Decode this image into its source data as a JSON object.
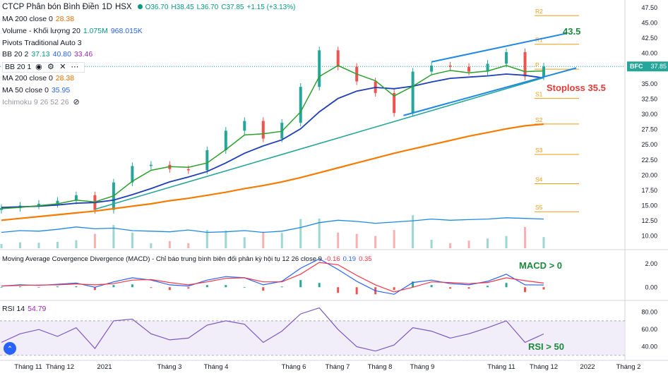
{
  "header": {
    "symbol": "CTCP Phân bón Bình Điền",
    "interval": "1D",
    "exchange": "HSX",
    "ohlc": [
      "O36.70",
      "H38.45",
      "L36.70",
      "C37.85",
      "+1.15 (+3.13%)"
    ]
  },
  "legend_rows": [
    {
      "name": "MA 200 close 0",
      "values": [
        "28.38"
      ],
      "colors": [
        "#ef6c00"
      ]
    },
    {
      "name": "Volume - Khối lượng 20",
      "values": [
        "1.075M",
        "968.015K"
      ],
      "colors": [
        "#089981",
        "#2962ff"
      ]
    },
    {
      "name": "Pivots Traditional Auto 3",
      "values": [],
      "colors": []
    },
    {
      "name": "BB 20 2",
      "values": [
        "37.13",
        "40.80",
        "33.46"
      ],
      "colors": [
        "#089981",
        "#2962ff",
        "#9c27b0"
      ]
    },
    {
      "name": "BB 20 1",
      "values": [],
      "colors": [],
      "toolbar": true
    },
    {
      "name": "MA 200 close 0",
      "values": [
        "28.38"
      ],
      "colors": [
        "#ef6c00"
      ]
    },
    {
      "name": "MA 50 close 0",
      "values": [
        "35.95"
      ],
      "colors": [
        "#2962ff"
      ]
    },
    {
      "name": "Ichimoku 9 26 52 26",
      "values": [],
      "colors": [],
      "muted": true
    }
  ],
  "macd_legend": {
    "name": "Moving Average Covergence Divergence (MACD) - Chỉ báo trung bình biên đối phân kỳ hội tụ 12 26 close 9",
    "values": [
      "-0.16",
      "0.19",
      "0.35"
    ],
    "colors": [
      "#f23645",
      "#2962ff",
      "#f23645"
    ]
  },
  "rsi_legend": {
    "name": "RSI 14",
    "value": "54.79"
  },
  "annotations": {
    "target": "43.5",
    "stoploss": "Stoploss 35.5",
    "macd_note": "MACD > 0",
    "rsi_note": "RSI > 50"
  },
  "price_badge": {
    "ticker": "BFC",
    "price": "37.85"
  },
  "colors": {
    "up": "#26a69a",
    "down": "#ef5350",
    "ma200": "#f57c00",
    "ma50": "#1e3fb8",
    "ma20": "#2ca02c",
    "trend": "#1e88e5",
    "pivot": "#f29c0e",
    "rsi": "#7e57c2"
  },
  "chart_data": {
    "type": "line",
    "price_axis": {
      "ticks": [
        10.0,
        12.5,
        15.0,
        17.5,
        20.0,
        22.5,
        25.0,
        27.5,
        30.0,
        32.5,
        35.0,
        37.5,
        40.0,
        42.5,
        45.0,
        47.5
      ],
      "labels": [
        "10.00",
        "12.50",
        "15.00",
        "17.50",
        "20.00",
        "22.50",
        "25.00",
        "27.50",
        "30.00",
        "32.50",
        "35.00",
        "37.50",
        "40.00",
        "42.50",
        "45.00",
        "47.50"
      ]
    },
    "macd_axis": {
      "ticks": [
        0,
        2
      ],
      "labels": [
        "0.00",
        "2.00"
      ]
    },
    "rsi_axis": {
      "ticks": [
        40,
        60,
        80
      ],
      "labels": [
        "40.00",
        "60.00",
        "80.00"
      ],
      "band": [
        30,
        70
      ]
    },
    "time_axis": [
      "Tháng 11",
      "Tháng 12",
      "2021",
      "Tháng 3",
      "Tháng 4",
      "Tháng 6",
      "Tháng 7",
      "Tháng 8",
      "Tháng 9",
      "Tháng 11",
      "Tháng 12",
      "2022",
      "Tháng 2"
    ],
    "pivots": [
      {
        "label": "R2",
        "value": 46.2
      },
      {
        "label": "R1",
        "value": 41.5
      },
      {
        "label": "P",
        "value": 37.4
      },
      {
        "label": "S1",
        "value": 32.6
      },
      {
        "label": "S2",
        "value": 28.4
      },
      {
        "label": "S3",
        "value": 23.4
      },
      {
        "label": "S4",
        "value": 18.6
      },
      {
        "label": "S5",
        "value": 14.0
      }
    ],
    "series": [
      {
        "name": "Close",
        "x": [
          0,
          10,
          20,
          30,
          40,
          50,
          60,
          70,
          80,
          90,
          100,
          110,
          120,
          130,
          140,
          150,
          160,
          170,
          180,
          190,
          200,
          210,
          220,
          230,
          240,
          250,
          260,
          270,
          280,
          290
        ],
        "values": [
          14.6,
          15.0,
          15.3,
          15.8,
          16.7,
          14.3,
          18.8,
          21.5,
          21.7,
          21.0,
          20.8,
          24.1,
          27.3,
          28.9,
          26.0,
          28.6,
          34.5,
          40.5,
          37.8,
          35.4,
          33.5,
          30.2,
          37.0,
          38.0,
          37.8,
          37.0,
          38.3,
          40.2,
          36.2,
          37.85
        ]
      },
      {
        "name": "MA 20",
        "x": [
          0,
          10,
          20,
          30,
          40,
          50,
          60,
          70,
          80,
          90,
          100,
          110,
          120,
          130,
          140,
          150,
          160,
          170,
          180,
          190,
          200,
          210,
          220,
          230,
          240,
          250,
          260,
          270,
          280,
          290
        ],
        "values": [
          14.5,
          14.7,
          15.0,
          15.3,
          15.9,
          15.6,
          16.6,
          19.0,
          20.8,
          21.4,
          21.3,
          22.0,
          24.2,
          26.6,
          26.8,
          27.2,
          30.4,
          36.2,
          38.0,
          36.6,
          35.5,
          33.0,
          34.6,
          36.5,
          37.2,
          36.8,
          37.1,
          38.0,
          37.0,
          37.13
        ]
      },
      {
        "name": "MA 50",
        "x": [
          0,
          10,
          20,
          30,
          40,
          50,
          60,
          70,
          80,
          90,
          100,
          110,
          120,
          130,
          140,
          150,
          160,
          170,
          180,
          190,
          200,
          210,
          220,
          230,
          240,
          250,
          260,
          270,
          280,
          290
        ],
        "values": [
          14.7,
          14.8,
          14.9,
          15.1,
          15.4,
          15.5,
          15.9,
          16.8,
          17.8,
          18.9,
          19.7,
          20.6,
          22.0,
          23.6,
          24.8,
          25.8,
          27.6,
          30.4,
          32.6,
          33.8,
          34.4,
          34.2,
          34.6,
          35.3,
          35.9,
          36.1,
          36.3,
          36.6,
          36.4,
          35.95
        ]
      },
      {
        "name": "MA 200",
        "x": [
          0,
          10,
          20,
          30,
          40,
          50,
          60,
          70,
          80,
          90,
          100,
          110,
          120,
          130,
          140,
          150,
          160,
          170,
          180,
          190,
          200,
          210,
          220,
          230,
          240,
          250,
          260,
          270,
          280,
          290
        ],
        "values": [
          12.6,
          12.9,
          13.2,
          13.5,
          13.8,
          14.1,
          14.5,
          14.9,
          15.3,
          15.8,
          16.2,
          16.7,
          17.2,
          17.8,
          18.3,
          18.9,
          19.6,
          20.4,
          21.2,
          22.0,
          22.8,
          23.6,
          24.3,
          25.0,
          25.7,
          26.4,
          27.0,
          27.6,
          28.1,
          28.38
        ]
      },
      {
        "name": "Volume",
        "x": [
          0,
          10,
          20,
          30,
          40,
          50,
          60,
          70,
          80,
          90,
          100,
          110,
          120,
          130,
          140,
          150,
          160,
          170,
          180,
          190,
          200,
          210,
          220,
          230,
          240,
          250,
          260,
          270,
          280,
          290
        ],
        "values": [
          10.6,
          10.9,
          10.8,
          11.1,
          11.5,
          11.2,
          11.3,
          10.9,
          10.8,
          10.7,
          11.0,
          10.6,
          10.7,
          10.9,
          10.6,
          10.8,
          11.4,
          12.2,
          12.6,
          12.4,
          12.1,
          12.3,
          12.5,
          12.8,
          12.6,
          12.7,
          12.8,
          13.0,
          12.9,
          12.8
        ]
      },
      {
        "name": "MACD",
        "x": [
          0,
          10,
          20,
          30,
          40,
          50,
          60,
          70,
          80,
          90,
          100,
          110,
          120,
          130,
          140,
          150,
          160,
          170,
          180,
          190,
          200,
          210,
          220,
          230,
          240,
          250,
          260,
          270,
          280,
          290
        ],
        "values": [
          0.1,
          0.2,
          0.15,
          0.25,
          0.35,
          0.0,
          0.45,
          0.8,
          0.6,
          0.2,
          0.1,
          0.6,
          0.9,
          0.8,
          0.2,
          0.5,
          1.6,
          2.4,
          1.5,
          0.5,
          -0.3,
          -0.6,
          0.4,
          0.6,
          0.3,
          0.2,
          0.5,
          1.1,
          0.2,
          0.19
        ]
      },
      {
        "name": "Signal",
        "x": [
          0,
          10,
          20,
          30,
          40,
          50,
          60,
          70,
          80,
          90,
          100,
          110,
          120,
          130,
          140,
          150,
          160,
          170,
          180,
          190,
          200,
          210,
          220,
          230,
          240,
          250,
          260,
          270,
          280,
          290
        ],
        "values": [
          0.1,
          0.15,
          0.18,
          0.2,
          0.28,
          0.2,
          0.3,
          0.6,
          0.65,
          0.4,
          0.2,
          0.45,
          0.75,
          0.8,
          0.45,
          0.45,
          1.1,
          2.1,
          1.9,
          1.0,
          0.2,
          -0.4,
          0.0,
          0.45,
          0.4,
          0.3,
          0.4,
          0.8,
          0.55,
          0.35
        ]
      },
      {
        "name": "RSI",
        "x": [
          0,
          10,
          20,
          30,
          40,
          50,
          60,
          70,
          80,
          90,
          100,
          110,
          120,
          130,
          140,
          150,
          160,
          170,
          180,
          190,
          200,
          210,
          220,
          230,
          240,
          250,
          260,
          270,
          280,
          290
        ],
        "values": [
          45,
          55,
          60,
          52,
          62,
          38,
          70,
          72,
          55,
          48,
          50,
          65,
          70,
          66,
          45,
          58,
          78,
          85,
          60,
          40,
          35,
          42,
          62,
          58,
          50,
          55,
          62,
          70,
          45,
          54.79
        ]
      }
    ]
  }
}
